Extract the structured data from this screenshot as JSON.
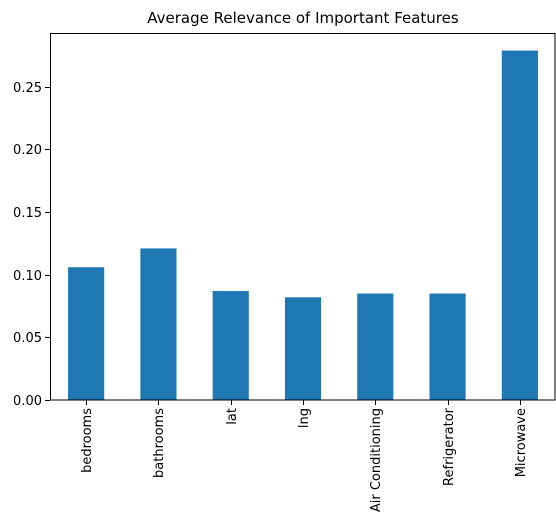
{
  "chart_data": {
    "type": "bar",
    "title": "Average Relevance of Important Features",
    "xlabel": "",
    "ylabel": "",
    "categories": [
      "bedrooms",
      "bathrooms",
      "lat",
      "lng",
      "Air Conditioning",
      "Refrigerator",
      "Microwave"
    ],
    "values": [
      0.106,
      0.121,
      0.087,
      0.082,
      0.085,
      0.085,
      0.279
    ],
    "ylim": [
      0,
      0.293
    ],
    "yticks": [
      0.0,
      0.05,
      0.1,
      0.15,
      0.2,
      0.25
    ],
    "ytick_labels": [
      "0.00",
      "0.05",
      "0.10",
      "0.15",
      "0.20",
      "0.25"
    ],
    "xtick_rotation": "vertical",
    "grid": false,
    "legend": "none",
    "colors": {
      "bar": "#1f77b4",
      "axes": "#000000",
      "background": "#ffffff"
    }
  }
}
